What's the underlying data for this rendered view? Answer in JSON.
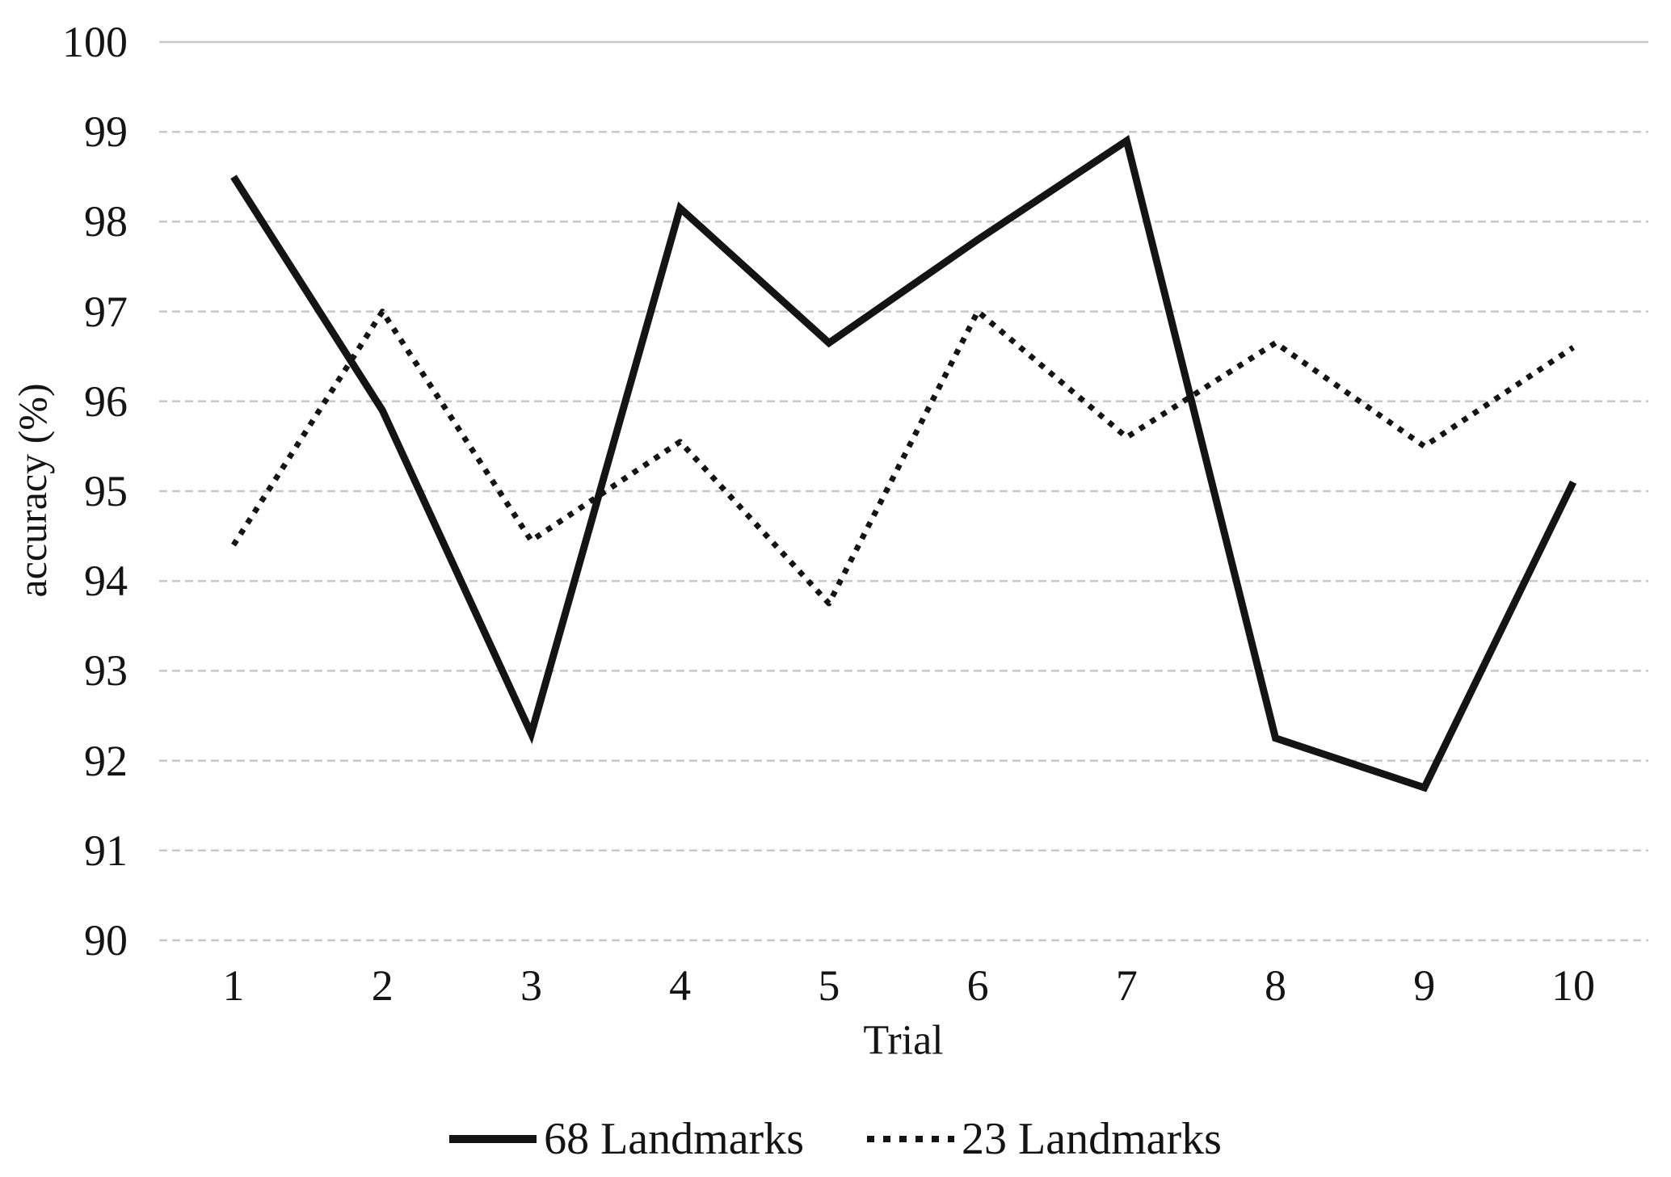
{
  "figure": {
    "background": "#ffffff"
  },
  "colors": {
    "series_line": "#141414",
    "gridline": "#c8c8c8",
    "text": "#141414"
  },
  "chart_data": {
    "type": "line",
    "title": "",
    "xlabel": "Trial",
    "ylabel": "accuracy (%)",
    "x": [
      1,
      2,
      3,
      4,
      5,
      6,
      7,
      8,
      9,
      10
    ],
    "x_tick_labels": [
      "1",
      "2",
      "3",
      "4",
      "5",
      "6",
      "7",
      "8",
      "9",
      "10"
    ],
    "y_ticks": [
      90,
      91,
      92,
      93,
      94,
      95,
      96,
      97,
      98,
      99,
      100
    ],
    "ylim": [
      90,
      100
    ],
    "grid": "horizontal light-gray dashed lines at every 1 unit",
    "legend_position": "bottom-center",
    "series": [
      {
        "name": "68 Landmarks",
        "style": "solid",
        "color": "#141414",
        "values": [
          98.5,
          95.9,
          92.3,
          98.15,
          96.65,
          97.8,
          98.9,
          92.25,
          91.7,
          95.1
        ]
      },
      {
        "name": "23 Landmarks",
        "style": "dotted",
        "color": "#141414",
        "values": [
          94.4,
          97.0,
          94.45,
          95.55,
          93.75,
          97.0,
          95.6,
          96.65,
          95.5,
          96.6
        ]
      }
    ]
  }
}
